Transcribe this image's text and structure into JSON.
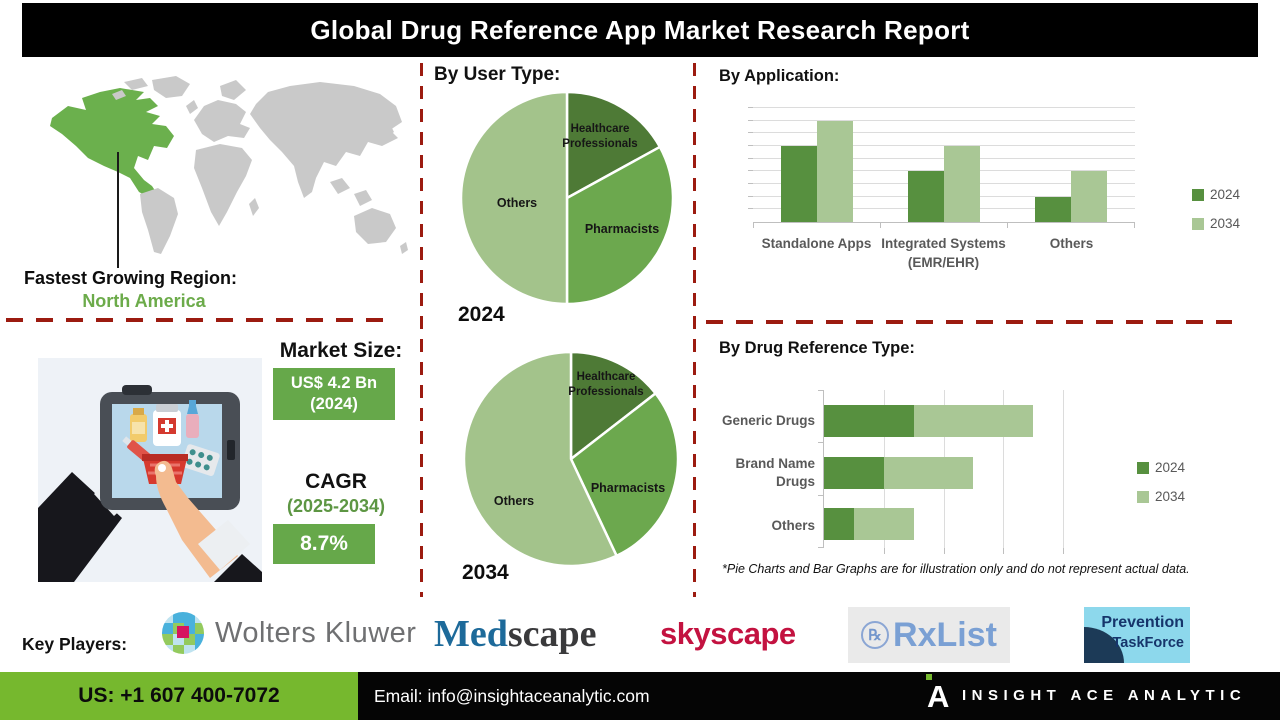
{
  "title": "Global Drug Reference App Market Research Report",
  "map": {
    "highlighted_region": "North America"
  },
  "fastest_region": {
    "label": "Fastest Growing Region:",
    "value": "North America"
  },
  "market_size": {
    "heading": "Market Size:",
    "value_line1": "US$ 4.2 Bn",
    "value_line2": "(2024)",
    "cagr_label": "CAGR",
    "cagr_period": "(2025-2034)",
    "cagr_value": "8.7%"
  },
  "sections": {
    "user_type_heading": "By User Type:",
    "application_heading": "By Application:",
    "drug_type_heading": "By Drug Reference Type:"
  },
  "footnote": "*Pie Charts and Bar Graphs are for illustration only and do not represent actual data.",
  "key_players": {
    "label": "Key Players:",
    "wolters_kluwer": "Wolters Kluwer",
    "medscape_part1": "Med",
    "medscape_part2": "scape",
    "skyscape": "skyscape",
    "rxlist_icon": "℞",
    "rxlist": "RxList",
    "prevention_line1": "Prevention",
    "prevention_line2": "TaskForce"
  },
  "footer": {
    "phone": "US: +1 607 400-7072",
    "email": "Email: info@insightaceanalytic.com",
    "brand": "INSIGHT ACE ANALYTIC",
    "logo_letter": "A"
  },
  "chart_data": [
    {
      "id": "user_type_2024",
      "type": "pie",
      "title": "By User Type: 2024",
      "year_label": "2024",
      "labels": [
        "Healthcare Professionals",
        "Pharmacists",
        "Others"
      ],
      "values": [
        17,
        33,
        50
      ],
      "colors": [
        "#4e7a36",
        "#6ca84e",
        "#a3c38b"
      ],
      "note": "illustrative percentages estimated from slice angles"
    },
    {
      "id": "user_type_2034",
      "type": "pie",
      "title": "By User Type: 2034",
      "year_label": "2034",
      "labels": [
        "Healthcare Professionals",
        "Pharmacists",
        "Others"
      ],
      "values": [
        14.5,
        28.5,
        57
      ],
      "colors": [
        "#4e7a36",
        "#6ca84e",
        "#a3c38b"
      ],
      "note": "illustrative percentages estimated from slice angles"
    },
    {
      "id": "by_application",
      "type": "bar",
      "title": "By Application:",
      "categories": [
        "Standalone Apps",
        "Integrated Systems (EMR/EHR)",
        "Others"
      ],
      "series": [
        {
          "name": "2024",
          "color": "#57903f",
          "values": [
            3,
            2,
            1
          ]
        },
        {
          "name": "2034",
          "color": "#a9c795",
          "values": [
            4,
            3,
            2
          ]
        }
      ],
      "ylim": [
        0,
        4.5
      ],
      "gridline_step": 0.5,
      "grid": true,
      "legend_position": "right",
      "note": "relative illustrative values estimated from bar heights"
    },
    {
      "id": "by_drug_reference_type",
      "type": "bar-horizontal-stacked",
      "title": "By Drug Reference Type:",
      "categories": [
        "Generic Drugs",
        "Brand Name Drugs",
        "Others"
      ],
      "series": [
        {
          "name": "2024",
          "color": "#57903f",
          "values": [
            1.5,
            1.0,
            0.5
          ]
        },
        {
          "name": "2034",
          "color": "#a9c795",
          "values": [
            2.0,
            1.5,
            1.0
          ]
        }
      ],
      "xlim": [
        0,
        4
      ],
      "gridline_step": 1,
      "grid": true,
      "legend_position": "right",
      "note": "relative illustrative segment lengths estimated from bar widths"
    }
  ],
  "colors": {
    "pie_dark_green": "#4e7a36",
    "pie_mid_green": "#6ca84e",
    "pie_light_green": "#a3c38b",
    "bar_2024": "#57903f",
    "bar_2034": "#a9c795",
    "value_box_green": "#66a84a",
    "cagr_period_green": "#5d9643",
    "region_green": "#6cab4a",
    "map_highlight_green": "#6bb04d",
    "map_gray": "#c9c9c9",
    "dashed_line_red": "#9c1b10",
    "footer_green": "#76b82e",
    "titlebar_black": "#000000"
  }
}
